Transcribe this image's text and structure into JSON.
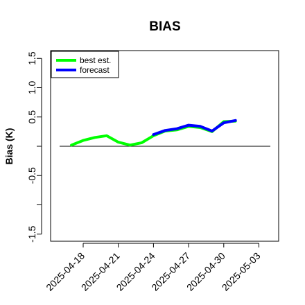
{
  "chart_data": {
    "type": "line",
    "title": "BIAS",
    "xlabel": "",
    "ylabel": "Bias (K)",
    "ylim": [
      -1.6,
      1.65
    ],
    "yticks": [
      -1.5,
      -1.0,
      -0.5,
      0.0,
      0.5,
      1.0,
      1.5
    ],
    "ytick_labels": [
      "-1.5",
      "",
      "-0.5",
      "",
      "0.5",
      "1.0",
      "1.5"
    ],
    "xticks": [
      "2025-04-18",
      "2025-04-21",
      "2025-04-24",
      "2025-04-27",
      "2025-04-30",
      "2025-05-03"
    ],
    "highlight_tick": "2025-04-24",
    "highlight_color": "#228B22",
    "legend_position": "top-left",
    "reference_line": 0,
    "series": [
      {
        "name": "best est.",
        "color": "#00ff00",
        "x": [
          "2025-04-17",
          "2025-04-18",
          "2025-04-19",
          "2025-04-20",
          "2025-04-21",
          "2025-04-22",
          "2025-04-23",
          "2025-04-24",
          "2025-04-25",
          "2025-04-26",
          "2025-04-27",
          "2025-04-28",
          "2025-04-29",
          "2025-04-30",
          "2025-05-01"
        ],
        "values": [
          0.02,
          0.1,
          0.15,
          0.18,
          0.07,
          0.02,
          0.06,
          0.18,
          0.26,
          0.28,
          0.34,
          0.32,
          0.25,
          0.42,
          0.43
        ]
      },
      {
        "name": "forecast",
        "color": "#0000ff",
        "x": [
          "2025-04-24",
          "2025-04-25",
          "2025-04-26",
          "2025-04-27",
          "2025-04-28",
          "2025-04-29",
          "2025-04-30",
          "2025-05-01"
        ],
        "values": [
          0.2,
          0.27,
          0.3,
          0.36,
          0.34,
          0.26,
          0.4,
          0.44
        ]
      }
    ]
  }
}
